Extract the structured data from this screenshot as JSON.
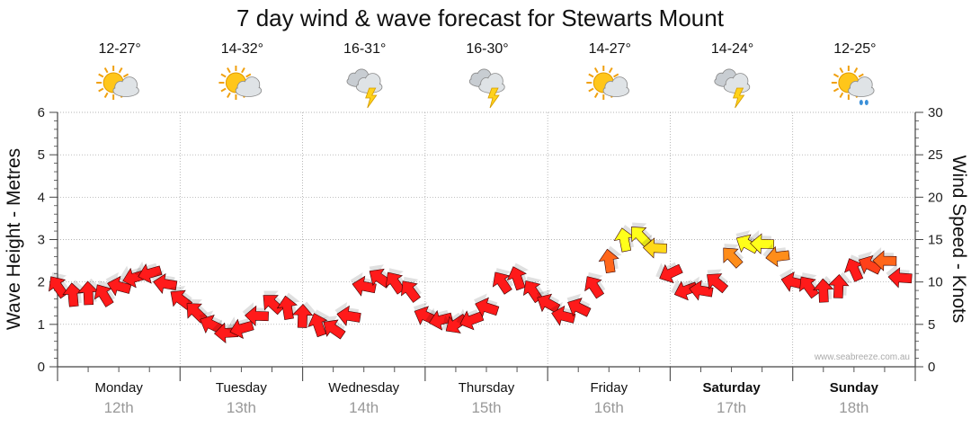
{
  "chart_data": {
    "type": "line",
    "title": "7 day wind & wave forecast for Stewarts Mount",
    "ylabel_left": "Wave Height - Metres",
    "ylabel_right": "Wind Speed - Knots",
    "ylim_left": [
      0,
      6
    ],
    "ylim_right": [
      0,
      30
    ],
    "yticks_left": [
      "0",
      "1",
      "2",
      "3",
      "4",
      "5",
      "6"
    ],
    "yticks_right": [
      "0",
      "5",
      "10",
      "15",
      "20",
      "25",
      "30"
    ],
    "grid": true,
    "days": [
      {
        "day": "Monday",
        "date": "12th",
        "temp": "12-27°",
        "icon": "partly-cloudy-icon",
        "bold": false
      },
      {
        "day": "Tuesday",
        "date": "13th",
        "temp": "14-32°",
        "icon": "partly-cloudy-icon",
        "bold": false
      },
      {
        "day": "Wednesday",
        "date": "14th",
        "temp": "16-31°",
        "icon": "thunderstorm-icon",
        "bold": false
      },
      {
        "day": "Thursday",
        "date": "15th",
        "temp": "16-30°",
        "icon": "thunderstorm-icon",
        "bold": false
      },
      {
        "day": "Friday",
        "date": "16th",
        "temp": "14-27°",
        "icon": "partly-cloudy-icon",
        "bold": false
      },
      {
        "day": "Saturday",
        "date": "17th",
        "temp": "14-24°",
        "icon": "thunderstorm-icon",
        "bold": true
      },
      {
        "day": "Sunday",
        "date": "18th",
        "temp": "12-25°",
        "icon": "showers-icon",
        "bold": true
      }
    ],
    "series": [
      {
        "name": "Wind Speed - Knots",
        "unit": "knots",
        "x_days": [
          0.0,
          0.125,
          0.25,
          0.375,
          0.5,
          0.625,
          0.75,
          0.875,
          1.0,
          1.125,
          1.25,
          1.375,
          1.5,
          1.625,
          1.75,
          1.875,
          2.0,
          2.125,
          2.25,
          2.375,
          2.5,
          2.625,
          2.75,
          2.875,
          3.0,
          3.125,
          3.25,
          3.375,
          3.5,
          3.625,
          3.75,
          3.875,
          4.0,
          4.125,
          4.25,
          4.375,
          4.5,
          4.625,
          4.75,
          4.875,
          5.0,
          5.125,
          5.25,
          5.375,
          5.5,
          5.625,
          5.75,
          5.875,
          6.0,
          6.125,
          6.25,
          6.375,
          6.5,
          6.625,
          6.75,
          6.875
        ],
        "values": [
          9.5,
          8.5,
          8.7,
          8.5,
          9.5,
          10.5,
          11,
          9.8,
          8,
          6.5,
          5,
          4,
          4.5,
          6,
          7.5,
          7,
          6,
          5,
          4.5,
          6,
          9.5,
          10.5,
          10,
          9,
          6,
          5.5,
          5,
          5.5,
          7,
          10,
          10.5,
          9,
          7.5,
          6,
          7,
          9.5,
          12.5,
          15,
          15.5,
          14,
          11,
          9,
          9,
          10,
          13,
          14.5,
          14.5,
          13,
          10,
          9.5,
          9,
          9.5,
          11.5,
          12,
          12.5,
          10.5
        ],
        "color_low": "#ff1a1a",
        "color_high": "#ffff1a"
      }
    ],
    "credit": "www.seabreeze.com.au"
  }
}
